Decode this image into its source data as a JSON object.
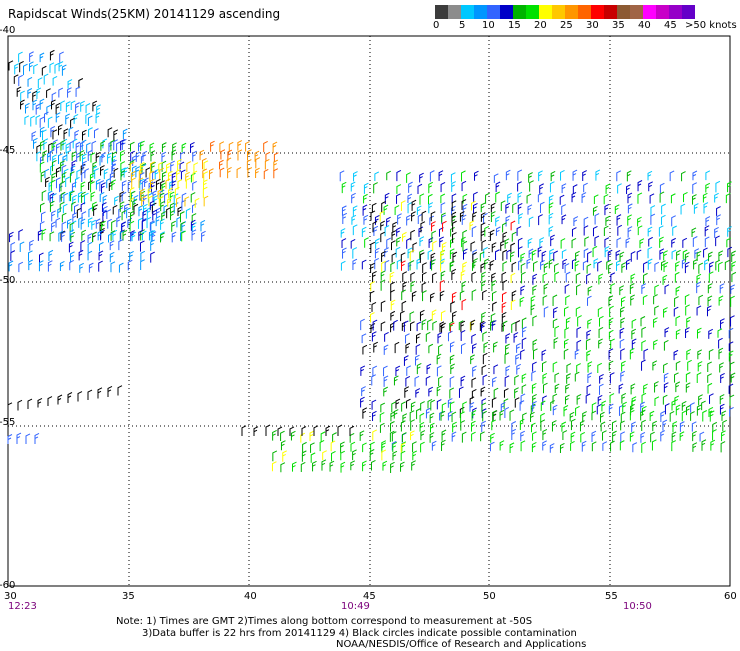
{
  "title": "Rapidscat Winds(25KM) 20141129 ascending",
  "legend": {
    "colors": [
      "#3c3c3c",
      "#8c8c8c",
      "#00c8ff",
      "#0096ff",
      "#3264ff",
      "#0000c8",
      "#00b400",
      "#00e100",
      "#ffff00",
      "#ffc800",
      "#ff9600",
      "#ff6400",
      "#ff0000",
      "#c80000",
      "#8c5a32",
      "#a06446",
      "#ff00ff",
      "#c800c8",
      "#9600c8",
      "#6400c8"
    ],
    "labels": [
      "0",
      "5",
      "10",
      "15",
      "20",
      "25",
      "30",
      "35",
      "40",
      "45",
      ">50 knots"
    ]
  },
  "map": {
    "x_ticks": [
      "30",
      "35",
      "40",
      "45",
      "50",
      "55",
      "60"
    ],
    "y_ticks": [
      "-40",
      "-45",
      "-50",
      "-55",
      "-60"
    ]
  },
  "times": [
    "12:23",
    "10:49",
    "10:50"
  ],
  "notes": {
    "line1": "Note: 1) Times are GMT 2)Times along bottom correspond to measurement at -50S",
    "line2": "3)Data buffer is 22 hrs from 20141129 4) Black circles indicate possible contamination",
    "line3": "NOAA/NESDIS/Office of Research and Applications"
  }
}
